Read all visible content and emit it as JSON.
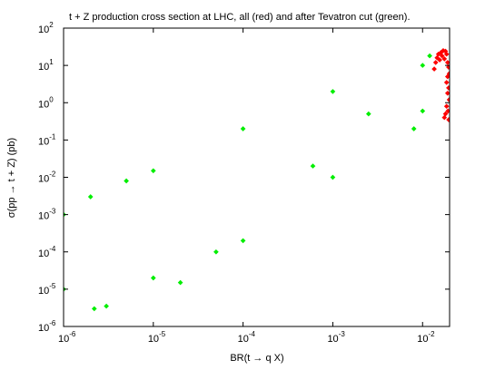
{
  "chart_data": {
    "type": "scatter",
    "title": "t + Z production cross section at LHC, all (red) and after Tevatron cut (green).",
    "xlabel": "BR(t → q X)",
    "ylabel": "σ(pp → t + Z) (pb)",
    "xscale": "log",
    "yscale": "log",
    "xlim": [
      1e-06,
      0.02
    ],
    "ylim": [
      1e-06,
      100
    ],
    "grid": false,
    "x_ticks": [
      {
        "value": 1e-06,
        "base": "10",
        "exp": "-6"
      },
      {
        "value": 1e-05,
        "base": "10",
        "exp": "-5"
      },
      {
        "value": 0.0001,
        "base": "10",
        "exp": "-4"
      },
      {
        "value": 0.001,
        "base": "10",
        "exp": "-3"
      },
      {
        "value": 0.01,
        "base": "10",
        "exp": "-2"
      }
    ],
    "y_ticks": [
      {
        "value": 1e-06,
        "base": "10",
        "exp": "-6"
      },
      {
        "value": 1e-05,
        "base": "10",
        "exp": "-5"
      },
      {
        "value": 0.0001,
        "base": "10",
        "exp": "-4"
      },
      {
        "value": 0.001,
        "base": "10",
        "exp": "-3"
      },
      {
        "value": 0.01,
        "base": "10",
        "exp": "-2"
      },
      {
        "value": 0.1,
        "base": "10",
        "exp": "-1"
      },
      {
        "value": 1,
        "base": "10",
        "exp": "0"
      },
      {
        "value": 10,
        "base": "10",
        "exp": "1"
      },
      {
        "value": 100,
        "base": "10",
        "exp": "2"
      }
    ],
    "series": [
      {
        "color": "#ff0000",
        "values": [
          [
            0.0135,
            8.0
          ],
          [
            0.014,
            12.0
          ],
          [
            0.0145,
            16.0
          ],
          [
            0.015,
            20.0
          ],
          [
            0.0155,
            14.0
          ],
          [
            0.016,
            22.0
          ],
          [
            0.0165,
            18.0
          ],
          [
            0.017,
            25.0
          ],
          [
            0.0175,
            15.0
          ],
          [
            0.018,
            24.0
          ],
          [
            0.0185,
            20.0
          ],
          [
            0.019,
            12.0
          ],
          [
            0.0195,
            9.0
          ],
          [
            0.0198,
            6.0
          ],
          [
            0.019,
            5.0
          ],
          [
            0.0185,
            3.5
          ],
          [
            0.0195,
            2.5
          ],
          [
            0.019,
            1.8
          ],
          [
            0.0198,
            1.2
          ],
          [
            0.0185,
            0.8
          ],
          [
            0.0192,
            0.6
          ],
          [
            0.018,
            0.5
          ],
          [
            0.0175,
            0.4
          ],
          [
            0.0196,
            0.35
          ]
        ]
      },
      {
        "color": "#00ee00",
        "values": [
          [
            1e-06,
            1e-05
          ],
          [
            1e-06,
            0.001
          ],
          [
            2e-06,
            0.003
          ],
          [
            5e-06,
            0.008
          ],
          [
            1e-05,
            0.015
          ],
          [
            1e-05,
            2e-05
          ],
          [
            5e-05,
            0.0001
          ],
          [
            0.0001,
            0.2
          ],
          [
            0.0001,
            0.0002
          ],
          [
            0.001,
            2.0
          ],
          [
            0.001,
            0.01
          ],
          [
            0.01,
            10.0
          ],
          [
            0.012,
            18.0
          ],
          [
            0.008,
            0.2
          ],
          [
            0.01,
            0.6
          ],
          [
            3e-06,
            3.5e-06
          ],
          [
            2e-05,
            1.5e-05
          ],
          [
            2.2e-06,
            3e-06
          ],
          [
            0.0025,
            0.5
          ],
          [
            0.0006,
            0.02
          ]
        ]
      }
    ]
  }
}
